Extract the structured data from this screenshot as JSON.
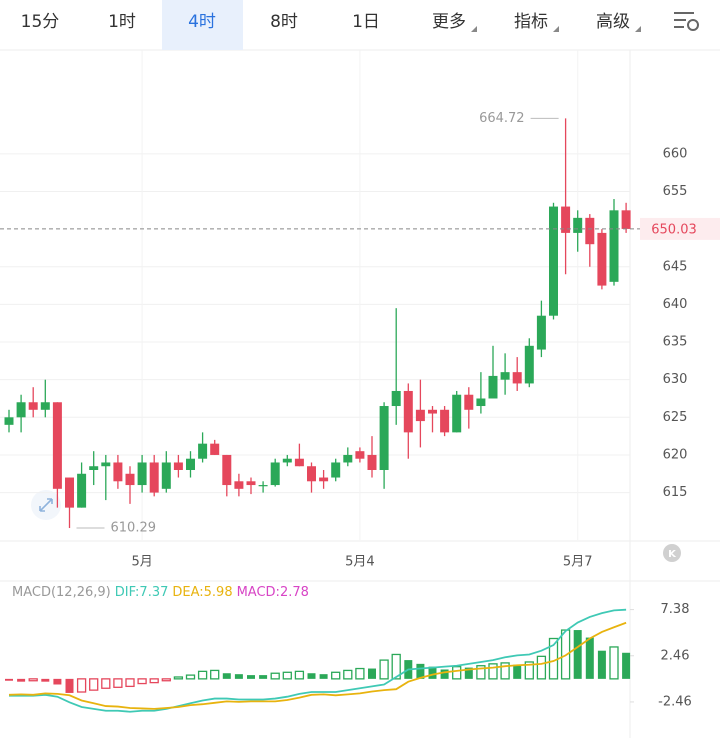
{
  "tabs": [
    "15分",
    "1时",
    "4时",
    "8时",
    "1日",
    "更多",
    "指标",
    "高级"
  ],
  "selected_tab": 2,
  "chart_data": [
    {
      "type": "candlestick",
      "categories": [
        null,
        null,
        null,
        null,
        null,
        null,
        null,
        null,
        null,
        null,
        null,
        "5月",
        null,
        null,
        null,
        null,
        null,
        null,
        null,
        null,
        null,
        null,
        null,
        null,
        null,
        null,
        null,
        null,
        null,
        "5月4",
        null,
        null,
        null,
        null,
        null,
        null,
        null,
        null,
        null,
        null,
        null,
        null,
        null,
        null,
        null,
        null,
        null,
        "5月7",
        null,
        null,
        null,
        null
      ],
      "open": [
        624,
        625,
        627,
        626,
        627,
        617,
        613,
        618,
        618.5,
        619,
        617.5,
        616,
        619,
        615.5,
        619,
        618,
        619.5,
        621.5,
        620,
        616.5,
        616.5,
        616,
        616,
        619,
        619.5,
        618.5,
        617,
        617,
        619,
        620.5,
        620,
        618,
        626.5,
        628.5,
        626,
        626,
        626,
        623,
        628,
        626.5,
        627.5,
        630,
        631,
        629.5,
        634,
        638.5,
        653,
        649.5,
        651.5,
        649.5,
        643,
        652.5
      ],
      "high": [
        626,
        628,
        629,
        630,
        627,
        617,
        619,
        620.5,
        620,
        620,
        618.5,
        620,
        620,
        620.5,
        620,
        620.5,
        623,
        622,
        620,
        617.5,
        617,
        616.5,
        619.5,
        620,
        621.5,
        619,
        618,
        619.5,
        621,
        621,
        622.5,
        627,
        639.5,
        629.5,
        630,
        626.5,
        626.5,
        628.5,
        629,
        631,
        634.5,
        633.5,
        633,
        635.5,
        640.5,
        653.5,
        664.72,
        652.5,
        652,
        650,
        654,
        653.5
      ],
      "low": [
        623,
        623,
        625,
        625,
        613,
        610.29,
        613,
        616,
        614,
        615.5,
        613.5,
        615,
        614.5,
        615,
        617,
        617,
        619,
        620,
        614.5,
        614.5,
        614.8,
        615,
        615.8,
        618.5,
        618.5,
        615,
        615.5,
        616.5,
        618.5,
        619,
        617,
        615.5,
        624,
        619.5,
        621,
        623,
        622.5,
        623,
        623.5,
        625.5,
        627.5,
        628,
        628.5,
        629,
        633,
        638,
        644,
        647,
        645,
        642,
        642.5,
        649.5
      ],
      "close": [
        625,
        627,
        626,
        627,
        615.5,
        613,
        617.5,
        618.5,
        619,
        616.5,
        616,
        619,
        615,
        619,
        618,
        619.5,
        621.5,
        620,
        616,
        615.5,
        616,
        616,
        619,
        619.5,
        618.5,
        616.5,
        616.5,
        619,
        620,
        619.5,
        618,
        626.5,
        628.5,
        623,
        624.5,
        625.5,
        623,
        628,
        626,
        627.5,
        630.5,
        631,
        629.5,
        634.5,
        638.5,
        653,
        649.5,
        651.5,
        648,
        642.5,
        652.5,
        650.03
      ],
      "up_color": "#2ba858",
      "down_color": "#e5475c",
      "ylim": [
        608.7,
        673.8
      ],
      "yticks": [
        615,
        620,
        625,
        630,
        635,
        640,
        645,
        655,
        660
      ],
      "grid": true,
      "current_price": 650.03,
      "high_label": 664.72,
      "low_label": 610.29
    },
    {
      "type": "macd",
      "title": "MACD(12,26,9)",
      "series": [
        {
          "name": "DIF:7.37",
          "color": "#3fc9b5",
          "values": [
            -1.8,
            -1.8,
            -1.8,
            -1.7,
            -1.9,
            -2.5,
            -3.0,
            -3.2,
            -3.4,
            -3.4,
            -3.5,
            -3.4,
            -3.4,
            -3.2,
            -2.9,
            -2.6,
            -2.3,
            -2.1,
            -2.1,
            -2.2,
            -2.2,
            -2.2,
            -2.1,
            -1.9,
            -1.6,
            -1.4,
            -1.4,
            -1.4,
            -1.2,
            -1.0,
            -0.8,
            -0.6,
            0.2,
            1.0,
            1.1,
            1.2,
            1.3,
            1.4,
            1.6,
            1.8,
            2.0,
            2.3,
            2.5,
            2.6,
            3.0,
            3.6,
            5.1,
            6.0,
            6.6,
            7.0,
            7.3,
            7.37
          ]
        },
        {
          "name": "DEA:5.98",
          "color": "#e8b30e",
          "values": [
            -1.7,
            -1.65,
            -1.7,
            -1.55,
            -1.6,
            -1.75,
            -2.3,
            -2.6,
            -2.9,
            -2.95,
            -3.1,
            -3.15,
            -3.2,
            -3.1,
            -3.0,
            -2.8,
            -2.7,
            -2.55,
            -2.4,
            -2.45,
            -2.4,
            -2.4,
            -2.4,
            -2.25,
            -2.0,
            -1.7,
            -1.65,
            -1.75,
            -1.65,
            -1.55,
            -1.35,
            -1.2,
            -1.1,
            -0.3,
            0.1,
            0.45,
            0.7,
            0.85,
            1.0,
            1.1,
            1.2,
            1.35,
            1.45,
            1.5,
            1.6,
            1.9,
            2.5,
            3.4,
            4.3,
            5.0,
            5.5,
            5.98
          ]
        },
        {
          "name": "MACD:2.78",
          "color": "#d845c6",
          "values": [
            -0.2,
            -0.3,
            -0.2,
            -0.3,
            -0.6,
            -1.5,
            -1.4,
            -1.2,
            -1.0,
            -0.9,
            -0.8,
            -0.5,
            -0.4,
            -0.2,
            0.2,
            0.4,
            0.8,
            0.9,
            0.6,
            0.5,
            0.4,
            0.4,
            0.6,
            0.7,
            0.8,
            0.6,
            0.5,
            0.7,
            0.9,
            1.1,
            1.1,
            2.0,
            2.6,
            2.0,
            1.6,
            1.3,
            1.0,
            1.3,
            1.2,
            1.4,
            1.6,
            1.7,
            1.5,
            1.8,
            2.4,
            4.3,
            5.2,
            5.2,
            4.4,
            3.0,
            3.4,
            2.78
          ]
        }
      ],
      "up_color": "#2ba858",
      "down_color": "#e5475c",
      "ylim": [
        -6.3,
        10
      ],
      "yticks": [
        7.38,
        2.46,
        -2.46
      ]
    }
  ]
}
